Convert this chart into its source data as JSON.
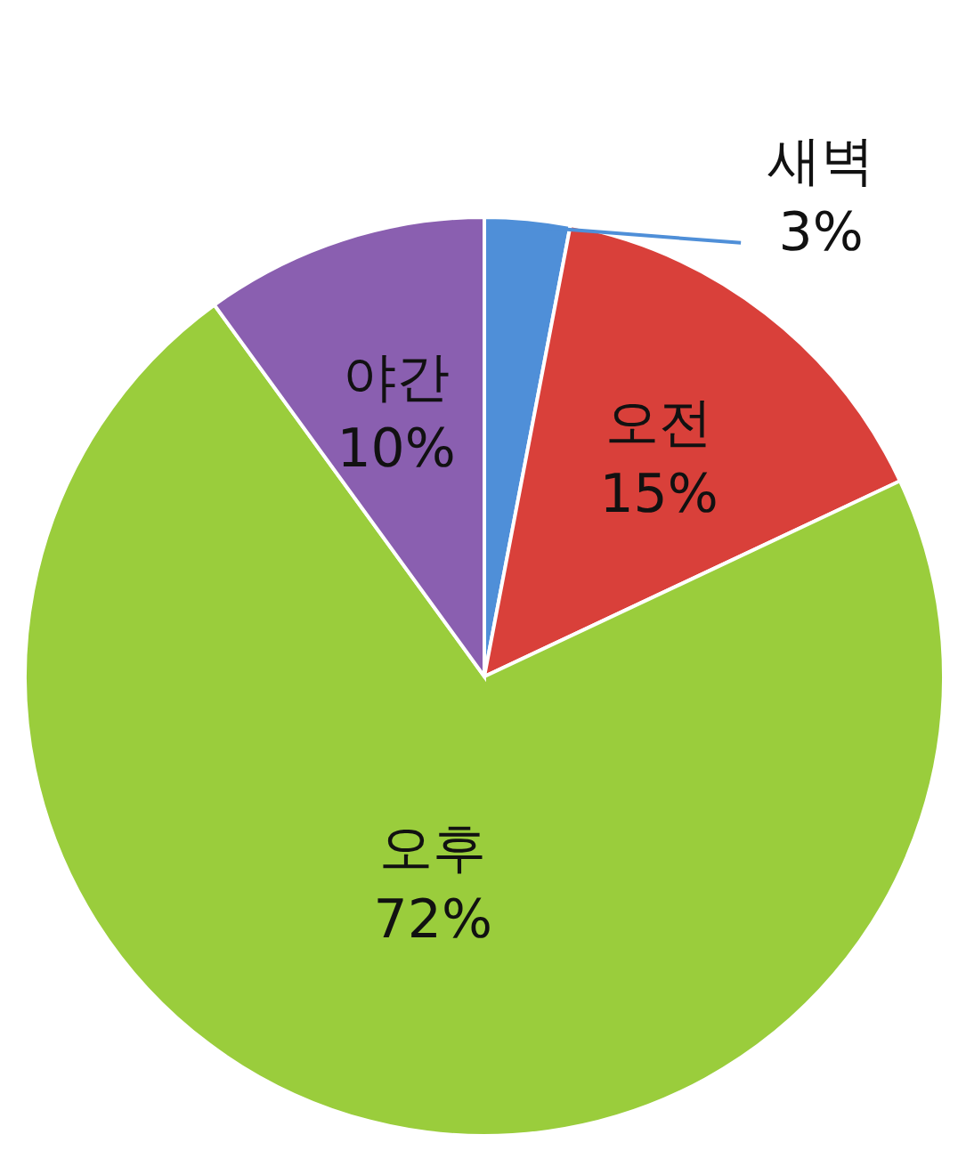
{
  "chart_data": {
    "type": "pie",
    "categories": [
      "새벽",
      "오전",
      "오후",
      "야간"
    ],
    "values": [
      3,
      15,
      72,
      10
    ],
    "value_labels": [
      "3%",
      "15%",
      "72%",
      "10%"
    ],
    "colors": [
      "#4f8fd8",
      "#d9403a",
      "#9acd3c",
      "#8a5fb0"
    ]
  }
}
